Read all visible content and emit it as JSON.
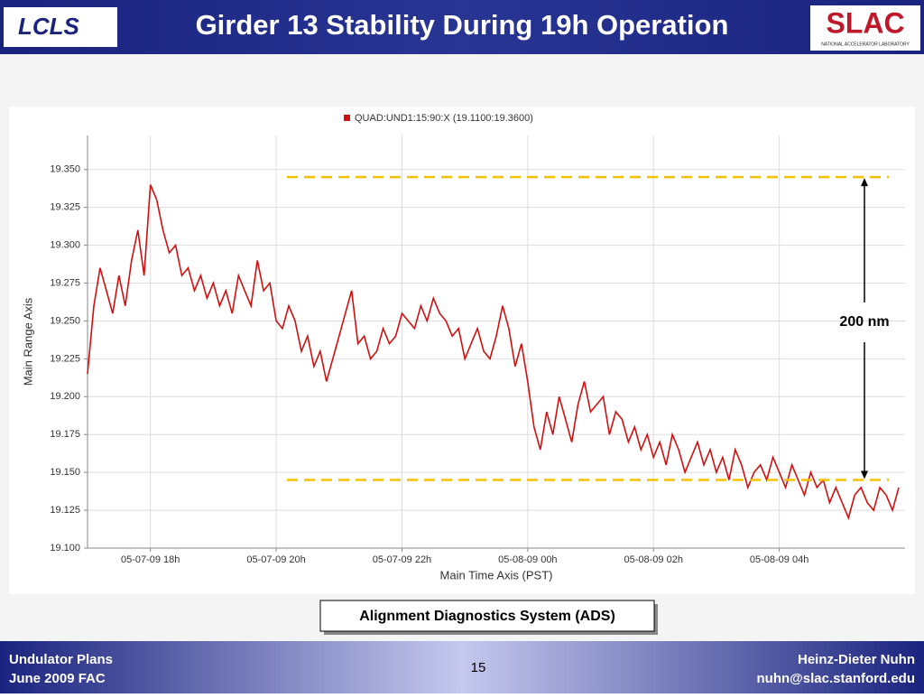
{
  "header": {
    "title": "Girder 13 Stability During 19h Operation",
    "logo_left": "LCLS",
    "logo_right": "SLAC",
    "logo_right_sub": "NATIONAL ACCELERATOR LABORATORY"
  },
  "chart_data": {
    "type": "line",
    "legend": "QUAD:UND1:15:90:X (19.1100:19.3600)",
    "x_label": "Main Time Axis (PST)",
    "y_label": "Main Range Axis",
    "grid": true,
    "color": "#d01010",
    "xlim": [
      17,
      30
    ],
    "ylim": [
      19.1,
      19.3725
    ],
    "xticks": [
      {
        "value": 18,
        "label": "05-07-09 18h"
      },
      {
        "value": 20,
        "label": "05-07-09 20h"
      },
      {
        "value": 22,
        "label": "05-07-09 22h"
      },
      {
        "value": 24,
        "label": "05-08-09 00h"
      },
      {
        "value": 26,
        "label": "05-08-09 02h"
      },
      {
        "value": 28,
        "label": "05-08-09 04h"
      }
    ],
    "yticks": [
      {
        "value": 19.1,
        "label": "19.100"
      },
      19.125,
      {
        "value": 19.15,
        "label": "19.150"
      },
      19.175,
      {
        "value": 19.2,
        "label": "19.200"
      },
      19.225,
      {
        "value": 19.25,
        "label": "19.250"
      },
      19.275,
      {
        "value": 19.3,
        "label": "19.300"
      },
      19.325,
      {
        "value": 19.35,
        "label": "19.350"
      }
    ],
    "reference_lines": [
      19.345,
      19.145
    ],
    "reference_color": "#f5c000",
    "annotation": "200 nm",
    "x": [
      17.0,
      17.1,
      17.2,
      17.3,
      17.4,
      17.5,
      17.6,
      17.7,
      17.8,
      17.9,
      18.0,
      18.1,
      18.2,
      18.3,
      18.4,
      18.5,
      18.6,
      18.7,
      18.8,
      18.9,
      19.0,
      19.1,
      19.2,
      19.3,
      19.4,
      19.5,
      19.6,
      19.7,
      19.8,
      19.9,
      20.0,
      20.1,
      20.2,
      20.3,
      20.4,
      20.5,
      20.6,
      20.7,
      20.8,
      20.9,
      21.0,
      21.1,
      21.2,
      21.3,
      21.4,
      21.5,
      21.6,
      21.7,
      21.8,
      21.9,
      22.0,
      22.1,
      22.2,
      22.3,
      22.4,
      22.5,
      22.6,
      22.7,
      22.8,
      22.9,
      23.0,
      23.1,
      23.2,
      23.3,
      23.4,
      23.5,
      23.6,
      23.7,
      23.8,
      23.9,
      24.0,
      24.1,
      24.2,
      24.3,
      24.4,
      24.5,
      24.6,
      24.7,
      24.8,
      24.9,
      25.0,
      25.1,
      25.2,
      25.3,
      25.4,
      25.5,
      25.6,
      25.7,
      25.8,
      25.9,
      26.0,
      26.1,
      26.2,
      26.3,
      26.4,
      26.5,
      26.6,
      26.7,
      26.8,
      26.9,
      27.0,
      27.1,
      27.2,
      27.3,
      27.4,
      27.5,
      27.6,
      27.7,
      27.8,
      27.9,
      28.0,
      28.1,
      28.2,
      28.3,
      28.4,
      28.5,
      28.6,
      28.7,
      28.8,
      28.9,
      29.0,
      29.1,
      29.2,
      29.3,
      29.4,
      29.5,
      29.6,
      29.7,
      29.8,
      29.9
    ],
    "values": [
      19.215,
      19.26,
      19.285,
      19.27,
      19.255,
      19.28,
      19.26,
      19.29,
      19.31,
      19.28,
      19.34,
      19.33,
      19.31,
      19.295,
      19.3,
      19.28,
      19.285,
      19.27,
      19.28,
      19.265,
      19.275,
      19.26,
      19.27,
      19.255,
      19.28,
      19.27,
      19.26,
      19.29,
      19.27,
      19.275,
      19.25,
      19.245,
      19.26,
      19.25,
      19.23,
      19.24,
      19.22,
      19.23,
      19.21,
      19.225,
      19.24,
      19.255,
      19.27,
      19.235,
      19.24,
      19.225,
      19.23,
      19.245,
      19.235,
      19.24,
      19.255,
      19.25,
      19.245,
      19.26,
      19.25,
      19.265,
      19.255,
      19.25,
      19.24,
      19.245,
      19.225,
      19.235,
      19.245,
      19.23,
      19.225,
      19.24,
      19.26,
      19.245,
      19.22,
      19.235,
      19.21,
      19.18,
      19.165,
      19.19,
      19.175,
      19.2,
      19.185,
      19.17,
      19.195,
      19.21,
      19.19,
      19.195,
      19.2,
      19.175,
      19.19,
      19.185,
      19.17,
      19.18,
      19.165,
      19.175,
      19.16,
      19.17,
      19.155,
      19.175,
      19.165,
      19.15,
      19.16,
      19.17,
      19.155,
      19.165,
      19.15,
      19.16,
      19.145,
      19.165,
      19.155,
      19.14,
      19.15,
      19.155,
      19.145,
      19.16,
      19.15,
      19.14,
      19.155,
      19.145,
      19.135,
      19.15,
      19.14,
      19.145,
      19.13,
      19.14,
      19.13,
      19.12,
      19.135,
      19.14,
      19.13,
      19.125,
      19.14,
      19.135,
      19.125,
      19.14
    ]
  },
  "caption": "Alignment Diagnostics System (ADS)",
  "footer": {
    "left_1": "Undulator Plans",
    "left_2": "June 2009 FAC",
    "page": "15",
    "right_1": "Heinz-Dieter Nuhn",
    "right_2": "nuhn@slac.stanford.edu"
  }
}
